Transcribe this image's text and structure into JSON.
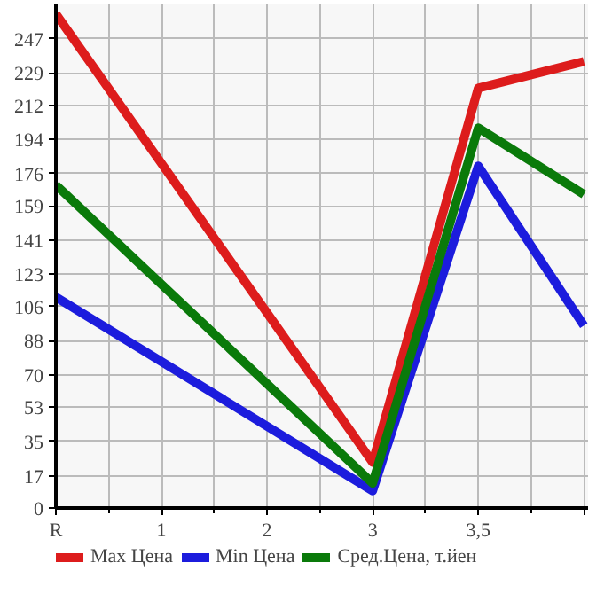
{
  "chart_data": {
    "type": "line",
    "categories": [
      "R",
      "1",
      "2",
      "3",
      "3,5",
      null
    ],
    "series": [
      {
        "name": "Max Цена",
        "color": "#dd1c1c",
        "values": [
          260,
          null,
          null,
          24,
          221,
          235
        ]
      },
      {
        "name": "Min Цена",
        "color": "#1c1cdd",
        "values": [
          111,
          null,
          null,
          9,
          180,
          96
        ]
      },
      {
        "name": "Сред.Цена, т.йен",
        "color": "#0a7a0a",
        "values": [
          170,
          null,
          null,
          13,
          200,
          165
        ]
      }
    ],
    "ylim": [
      0,
      265
    ],
    "yticks": [
      0,
      17,
      35,
      53,
      70,
      88,
      106,
      123,
      141,
      159,
      176,
      194,
      212,
      229,
      247
    ],
    "grid": true,
    "legend": "bottom",
    "marker": "none",
    "line_style": "solid"
  }
}
